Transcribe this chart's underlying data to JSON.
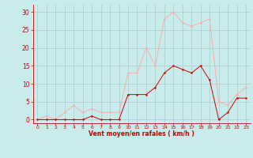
{
  "hours": [
    0,
    1,
    2,
    3,
    4,
    5,
    6,
    7,
    8,
    9,
    10,
    11,
    12,
    13,
    14,
    15,
    16,
    17,
    18,
    19,
    20,
    21,
    22,
    23
  ],
  "wind_avg": [
    0,
    0,
    0,
    0,
    0,
    0,
    1,
    0,
    0,
    0,
    7,
    7,
    7,
    9,
    13,
    15,
    14,
    13,
    15,
    11,
    0,
    2,
    6,
    6
  ],
  "wind_gust": [
    0,
    1,
    0,
    2,
    4,
    2,
    3,
    2,
    2,
    2,
    13,
    13,
    20,
    15,
    28,
    30,
    27,
    26,
    27,
    28,
    5,
    4,
    7,
    9
  ],
  "wind_avg_color": "#cc0000",
  "wind_gust_color": "#ffaaaa",
  "bg_color": "#c8ecec",
  "grid_color": "#aacccc",
  "axis_color": "#cc0000",
  "tick_color": "#cc0000",
  "xlabel": "Vent moyen/en rafales ( km/h )",
  "ylabel_ticks": [
    0,
    5,
    10,
    15,
    20,
    25,
    30
  ],
  "ylim": [
    -1,
    32
  ],
  "xlim": [
    -0.5,
    23.5
  ]
}
